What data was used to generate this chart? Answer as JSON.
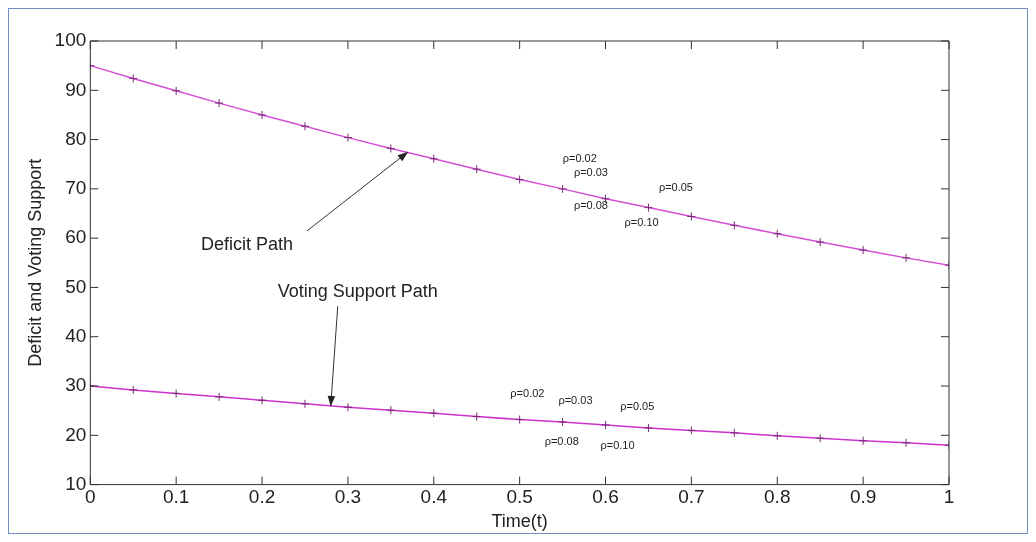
{
  "chart_data": {
    "type": "line",
    "xlabel": "Time(t)",
    "ylabel": "Deficit and Voting Support",
    "xlim": [
      0,
      1
    ],
    "xticks": [
      0,
      0.1,
      0.2,
      0.3,
      0.4,
      0.5,
      0.6,
      0.7,
      0.8,
      0.9,
      1
    ],
    "ylim": [
      10,
      100
    ],
    "yticks": [
      10,
      20,
      30,
      40,
      50,
      60,
      70,
      80,
      90,
      100
    ],
    "grid": false,
    "legend": false,
    "line_style": "solid",
    "series": [
      {
        "color": "#d64fd6",
        "marker": "cross",
        "x": [
          0,
          0.05,
          0.1,
          0.15,
          0.2,
          0.25,
          0.3,
          0.35,
          0.4,
          0.45,
          0.5,
          0.55,
          0.6,
          0.65,
          0.7,
          0.75,
          0.8,
          0.85,
          0.9,
          0.95,
          1
        ],
        "values": [
          95,
          92.4,
          89.9,
          87.4,
          85.0,
          82.7,
          80.4,
          78.2,
          76.1,
          74.0,
          71.9,
          70.0,
          68.0,
          66.2,
          64.4,
          62.6,
          60.9,
          59.2,
          57.6,
          56.0,
          54.5
        ]
      },
      {
        "color": "#cc33cc",
        "marker": "cross",
        "x": [
          0,
          0.05,
          0.1,
          0.15,
          0.2,
          0.25,
          0.3,
          0.35,
          0.4,
          0.45,
          0.5,
          0.55,
          0.6,
          0.65,
          0.7,
          0.75,
          0.8,
          0.85,
          0.9,
          0.95,
          1
        ],
        "values": [
          30,
          29.2,
          28.5,
          27.8,
          27.1,
          26.4,
          25.7,
          25.1,
          24.5,
          23.8,
          23.2,
          22.7,
          22.1,
          21.5,
          21.0,
          20.5,
          19.9,
          19.4,
          18.9,
          18.5,
          18.0
        ]
      }
    ],
    "annotations": [
      {
        "text": "Deficit Path",
        "x": 0.37,
        "y": 77.5
      },
      {
        "text": "Voting Support Path",
        "x": 0.28,
        "y": 25.9
      },
      "ρ=0.02",
      "ρ=0.03",
      "ρ=0.05",
      "ρ=0.08",
      "ρ=0.10",
      "ρ=0.02",
      "ρ=0.03",
      "ρ=0.05",
      "ρ=0.08",
      "ρ=0.10"
    ]
  }
}
